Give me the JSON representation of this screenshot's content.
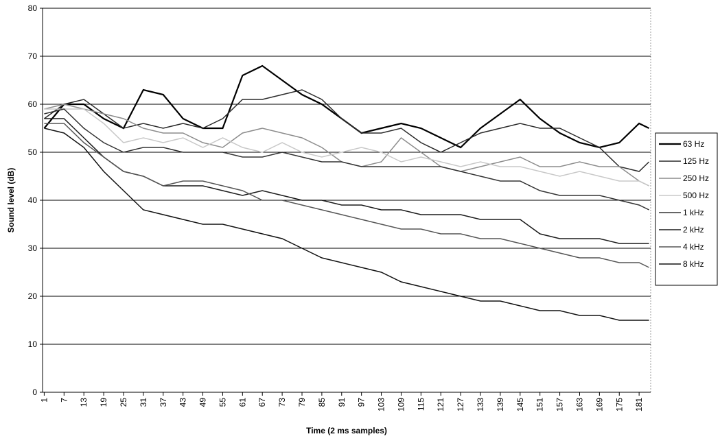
{
  "chart_data": {
    "type": "line",
    "x_label": "Time (2 ms samples)",
    "y_label": "Sound level (dB)",
    "x": [
      1,
      7,
      13,
      19,
      25,
      31,
      37,
      43,
      49,
      55,
      61,
      67,
      73,
      79,
      85,
      91,
      97,
      103,
      109,
      115,
      121,
      127,
      133,
      139,
      145,
      151,
      157,
      163,
      169,
      175,
      181,
      184
    ],
    "xlim": [
      0.5,
      184.5
    ],
    "xticks": [
      1,
      7,
      13,
      19,
      25,
      31,
      37,
      43,
      49,
      55,
      61,
      67,
      73,
      79,
      85,
      91,
      97,
      103,
      109,
      115,
      121,
      127,
      133,
      139,
      145,
      151,
      157,
      163,
      169,
      175,
      181
    ],
    "ylim": [
      0,
      80
    ],
    "yticks": [
      0,
      10,
      20,
      30,
      40,
      50,
      60,
      70,
      80
    ],
    "grid": true,
    "legend": "right",
    "series": [
      {
        "name": "63 Hz",
        "color": "#000000",
        "values": [
          55,
          60,
          60,
          57,
          55,
          63,
          62,
          57,
          55,
          55,
          66,
          68,
          65,
          62,
          60,
          57,
          54,
          55,
          56,
          55,
          53,
          51,
          55,
          58,
          61,
          57,
          54,
          52,
          51,
          52,
          56,
          55
        ]
      },
      {
        "name": "125 Hz",
        "color": "#2a2a2a",
        "values": [
          57,
          60,
          61,
          58,
          55,
          56,
          55,
          56,
          55,
          57,
          61,
          61,
          62,
          63,
          61,
          57,
          54,
          54,
          55,
          52,
          50,
          52,
          54,
          55,
          56,
          55,
          55,
          53,
          51,
          47,
          46,
          48
        ]
      },
      {
        "name": "250 Hz",
        "color": "#8c8c8c",
        "values": [
          59,
          60,
          59,
          58,
          57,
          55,
          54,
          54,
          52,
          51,
          54,
          55,
          54,
          53,
          51,
          48,
          47,
          48,
          53,
          50,
          47,
          46,
          47,
          48,
          49,
          47,
          47,
          48,
          47,
          47,
          44,
          43
        ]
      },
      {
        "name": "500 Hz",
        "color": "#c8c8c8",
        "values": [
          59,
          59,
          59,
          56,
          52,
          53,
          52,
          53,
          51,
          53,
          51,
          50,
          52,
          50,
          49,
          50,
          51,
          50,
          48,
          49,
          48,
          47,
          48,
          47,
          47,
          46,
          45,
          46,
          45,
          44,
          44,
          43
        ]
      },
      {
        "name": "1 kHz",
        "color": "#333333",
        "values": [
          58,
          59,
          55,
          52,
          50,
          51,
          51,
          50,
          50,
          50,
          49,
          49,
          50,
          49,
          48,
          48,
          47,
          47,
          47,
          47,
          47,
          46,
          45,
          44,
          44,
          42,
          41,
          41,
          41,
          40,
          39,
          38
        ]
      },
      {
        "name": "2 kHz",
        "color": "#1a1a1a",
        "values": [
          57,
          57,
          53,
          49,
          46,
          45,
          43,
          43,
          43,
          42,
          41,
          42,
          41,
          40,
          40,
          39,
          39,
          38,
          38,
          37,
          37,
          37,
          36,
          36,
          36,
          33,
          32,
          32,
          32,
          31,
          31,
          31
        ]
      },
      {
        "name": "4 kHz",
        "color": "#555555",
        "values": [
          56,
          56,
          52,
          49,
          46,
          45,
          43,
          44,
          44,
          43,
          42,
          40,
          40,
          39,
          38,
          37,
          36,
          35,
          34,
          34,
          33,
          33,
          32,
          32,
          31,
          30,
          29,
          28,
          28,
          27,
          27,
          26
        ]
      },
      {
        "name": "8 kHz",
        "color": "#111111",
        "values": [
          55,
          54,
          51,
          46,
          42,
          38,
          37,
          36,
          35,
          35,
          34,
          33,
          32,
          30,
          28,
          27,
          26,
          25,
          23,
          22,
          21,
          20,
          19,
          19,
          18,
          17,
          17,
          16,
          16,
          15,
          15,
          15
        ]
      }
    ]
  }
}
